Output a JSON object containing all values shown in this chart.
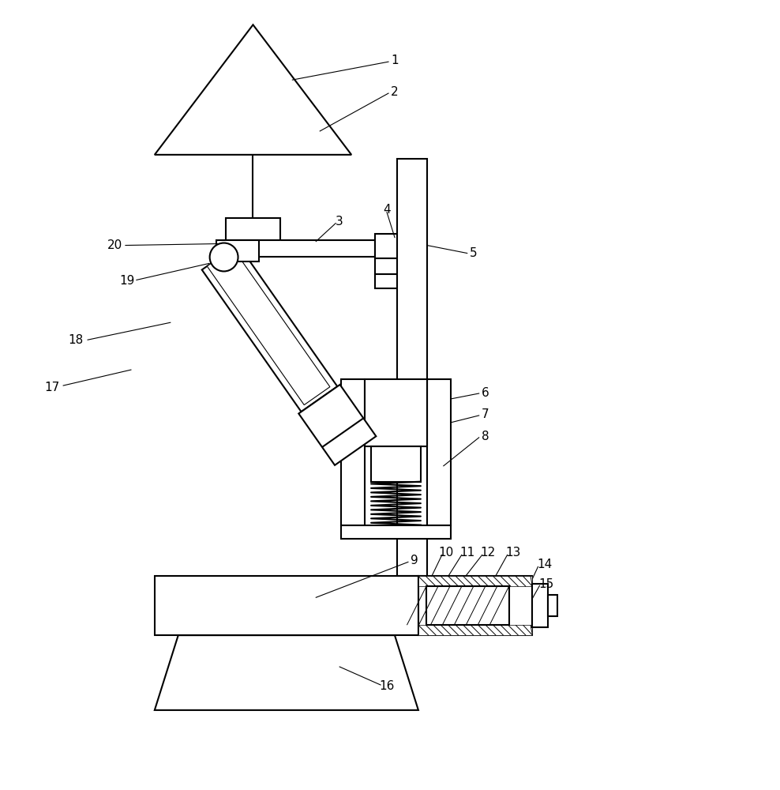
{
  "bg_color": "#ffffff",
  "line_color": "#000000",
  "figsize": [
    9.88,
    10.0
  ],
  "dpi": 100
}
